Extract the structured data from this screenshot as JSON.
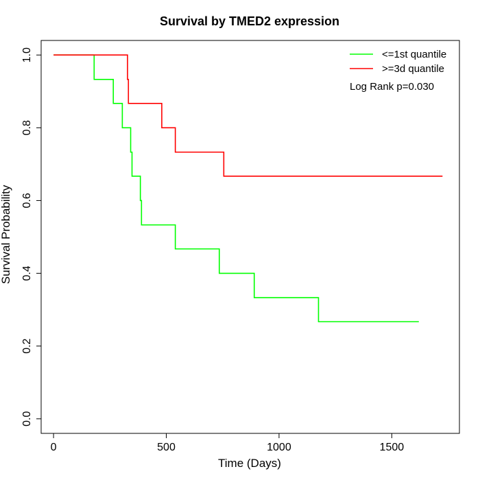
{
  "chart_data": {
    "type": "line",
    "title": "Survival by TMED2 expression",
    "xlabel": "Time (Days)",
    "ylabel": "Survival Probability",
    "xlim": [
      -55,
      1800
    ],
    "ylim": [
      -0.04,
      1.04
    ],
    "x_ticks": [
      0,
      500,
      1000,
      1500
    ],
    "y_ticks": [
      0.0,
      0.2,
      0.4,
      0.6,
      0.8,
      1.0
    ],
    "x_tick_labels": [
      "0",
      "500",
      "1000",
      "1500"
    ],
    "y_tick_labels": [
      "0.0",
      "0.2",
      "0.4",
      "0.6",
      "0.8",
      "1.0"
    ],
    "grid": false,
    "legend_position": "top-right",
    "annotation": "Log Rank p=0.030",
    "series": [
      {
        "name": "<=1st quantile",
        "color": "#00ff00",
        "step": true,
        "x": [
          0,
          180,
          265,
          305,
          342,
          348,
          385,
          390,
          540,
          735,
          890,
          1175,
          1620
        ],
        "y": [
          1.0,
          0.933,
          0.867,
          0.8,
          0.733,
          0.667,
          0.6,
          0.533,
          0.467,
          0.4,
          0.333,
          0.267,
          0.267
        ]
      },
      {
        "name": ">=3d quantile",
        "color": "#ff0000",
        "step": true,
        "x": [
          0,
          328,
          332,
          480,
          540,
          755,
          1725
        ],
        "y": [
          1.0,
          0.933,
          0.867,
          0.8,
          0.733,
          0.667,
          0.667
        ]
      }
    ]
  }
}
